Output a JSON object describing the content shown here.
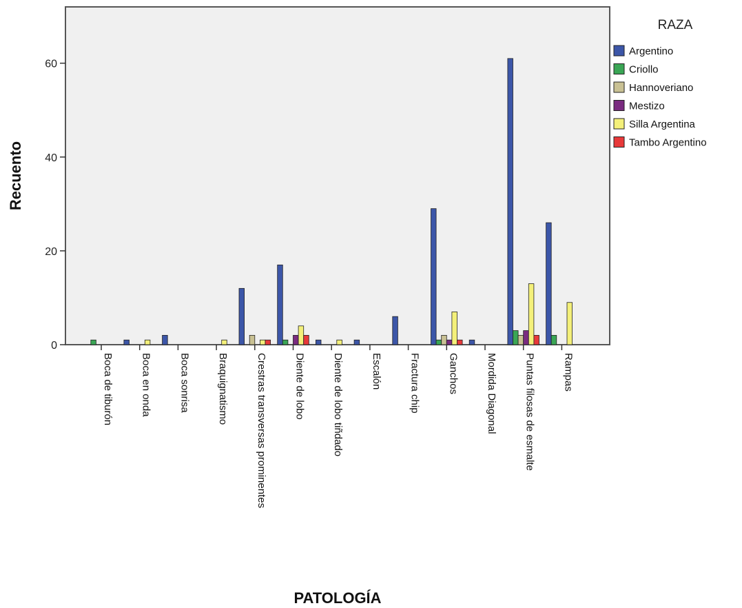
{
  "chart_data": {
    "type": "bar",
    "title": "",
    "xlabel": "PATOLOGÍA",
    "ylabel": "Recuento",
    "ylim": [
      0,
      72
    ],
    "yticks": [
      0,
      20,
      40,
      60
    ],
    "grid": false,
    "legend": {
      "title": "RAZA",
      "placement": "right"
    },
    "categories": [
      "Boca de tiburón",
      "Boca en onda",
      "Boca sonrisa",
      "Braquignatismo",
      "Crestras transversas prominentes",
      "Diente de lobo",
      "Diente de lobo tiñdado",
      "Escalón",
      "Fractura chip",
      "Ganchos",
      "Mordida Diagonal",
      "Puntas filosas de esmalte",
      "Rampas"
    ],
    "series": [
      {
        "name": "Argentino",
        "color": "#3c56a8",
        "values": [
          0,
          1,
          2,
          0,
          12,
          17,
          1,
          1,
          6,
          29,
          1,
          61,
          26
        ]
      },
      {
        "name": "Criollo",
        "color": "#3aa655",
        "values": [
          1,
          0,
          0,
          0,
          0,
          1,
          0,
          0,
          0,
          1,
          0,
          3,
          2
        ]
      },
      {
        "name": "Hannoveriano",
        "color": "#c9c194",
        "values": [
          0,
          0,
          0,
          0,
          2,
          0,
          0,
          0,
          0,
          2,
          0,
          2,
          0
        ]
      },
      {
        "name": "Mestizo",
        "color": "#7a2b80",
        "values": [
          0,
          0,
          0,
          0,
          0,
          2,
          0,
          0,
          0,
          1,
          0,
          3,
          0
        ]
      },
      {
        "name": "Silla Argentina",
        "color": "#f4f07a",
        "values": [
          0,
          1,
          0,
          1,
          1,
          4,
          1,
          0,
          0,
          7,
          0,
          13,
          9
        ]
      },
      {
        "name": "Tambo Argentino",
        "color": "#e8393a",
        "values": [
          0,
          0,
          0,
          0,
          1,
          2,
          0,
          0,
          0,
          1,
          0,
          2,
          0
        ]
      }
    ]
  }
}
